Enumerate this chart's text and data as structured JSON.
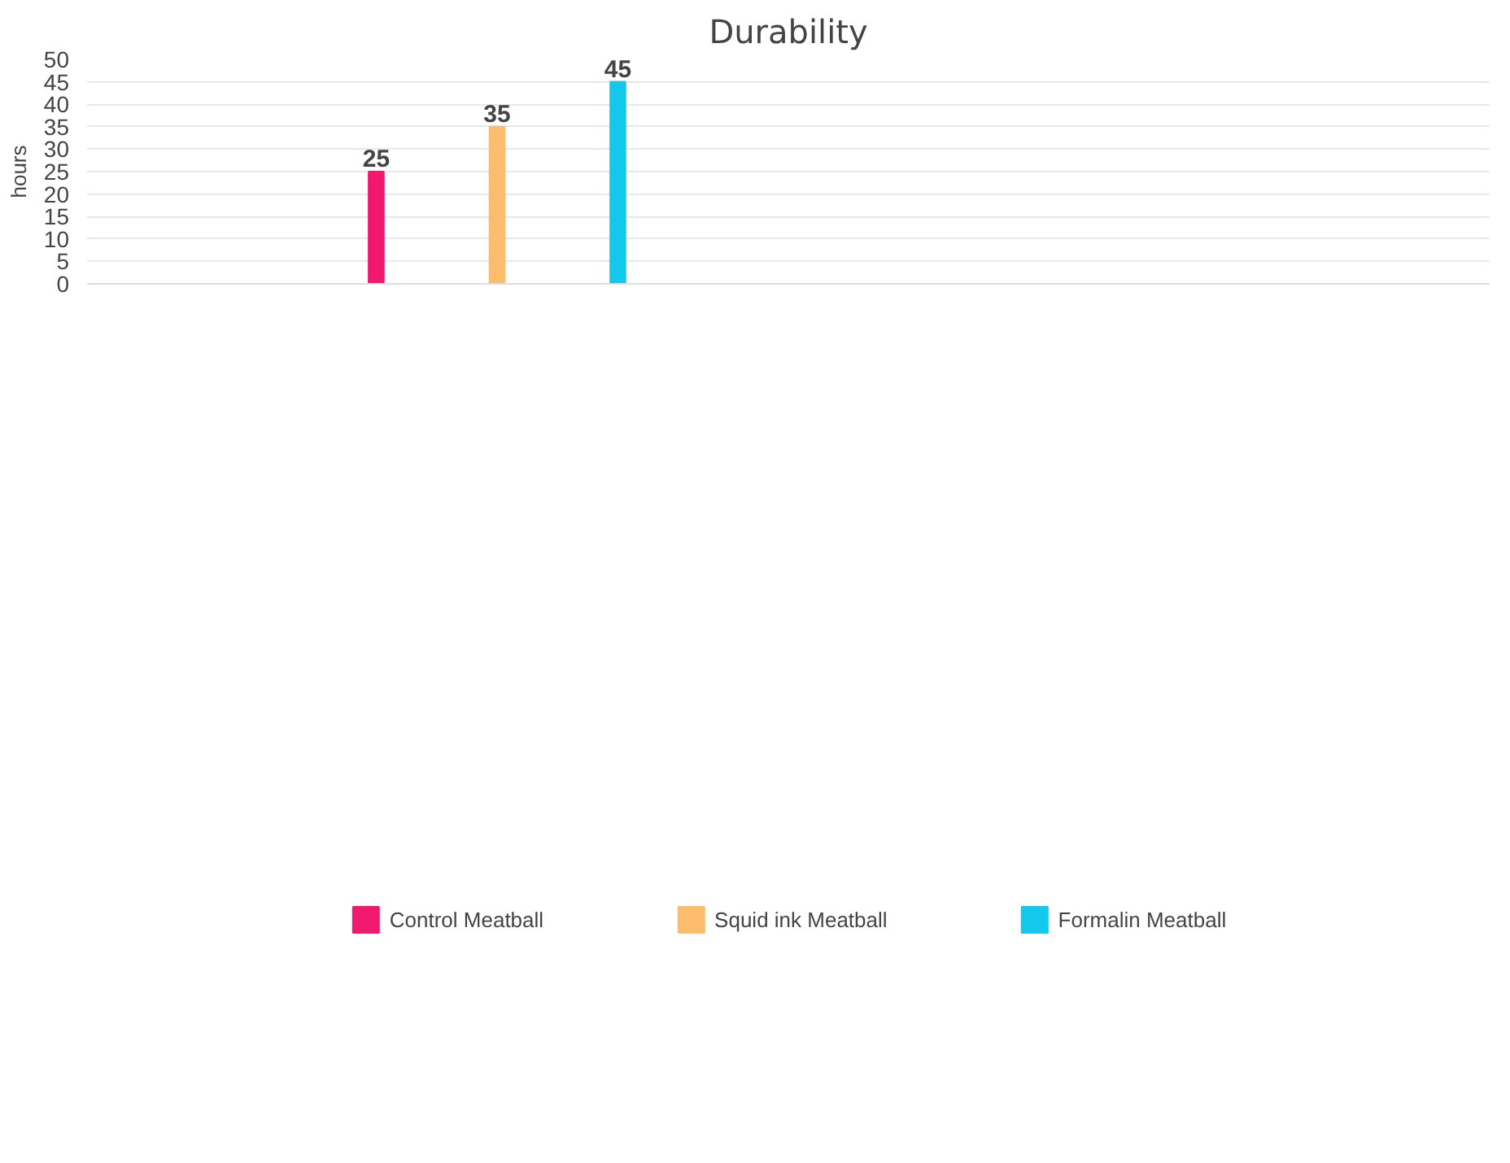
{
  "chart_data": {
    "type": "bar",
    "title": "Durability",
    "ylabel": "hours",
    "categories": [
      null
    ],
    "series": [
      {
        "name": "Control Meatball",
        "color": "#f0196e",
        "values": [
          25
        ]
      },
      {
        "name": "Squid ink Meatball",
        "color": "#fbbc6c",
        "values": [
          35
        ]
      },
      {
        "name": "Formalin Meatball",
        "color": "#14c8ec",
        "values": [
          45
        ]
      }
    ],
    "ylim": [
      0,
      50
    ],
    "yticks": [
      0,
      5,
      10,
      15,
      20,
      25,
      30,
      35,
      40,
      45,
      50
    ],
    "grid": "y",
    "legend": "bottom",
    "data_labels": true
  }
}
